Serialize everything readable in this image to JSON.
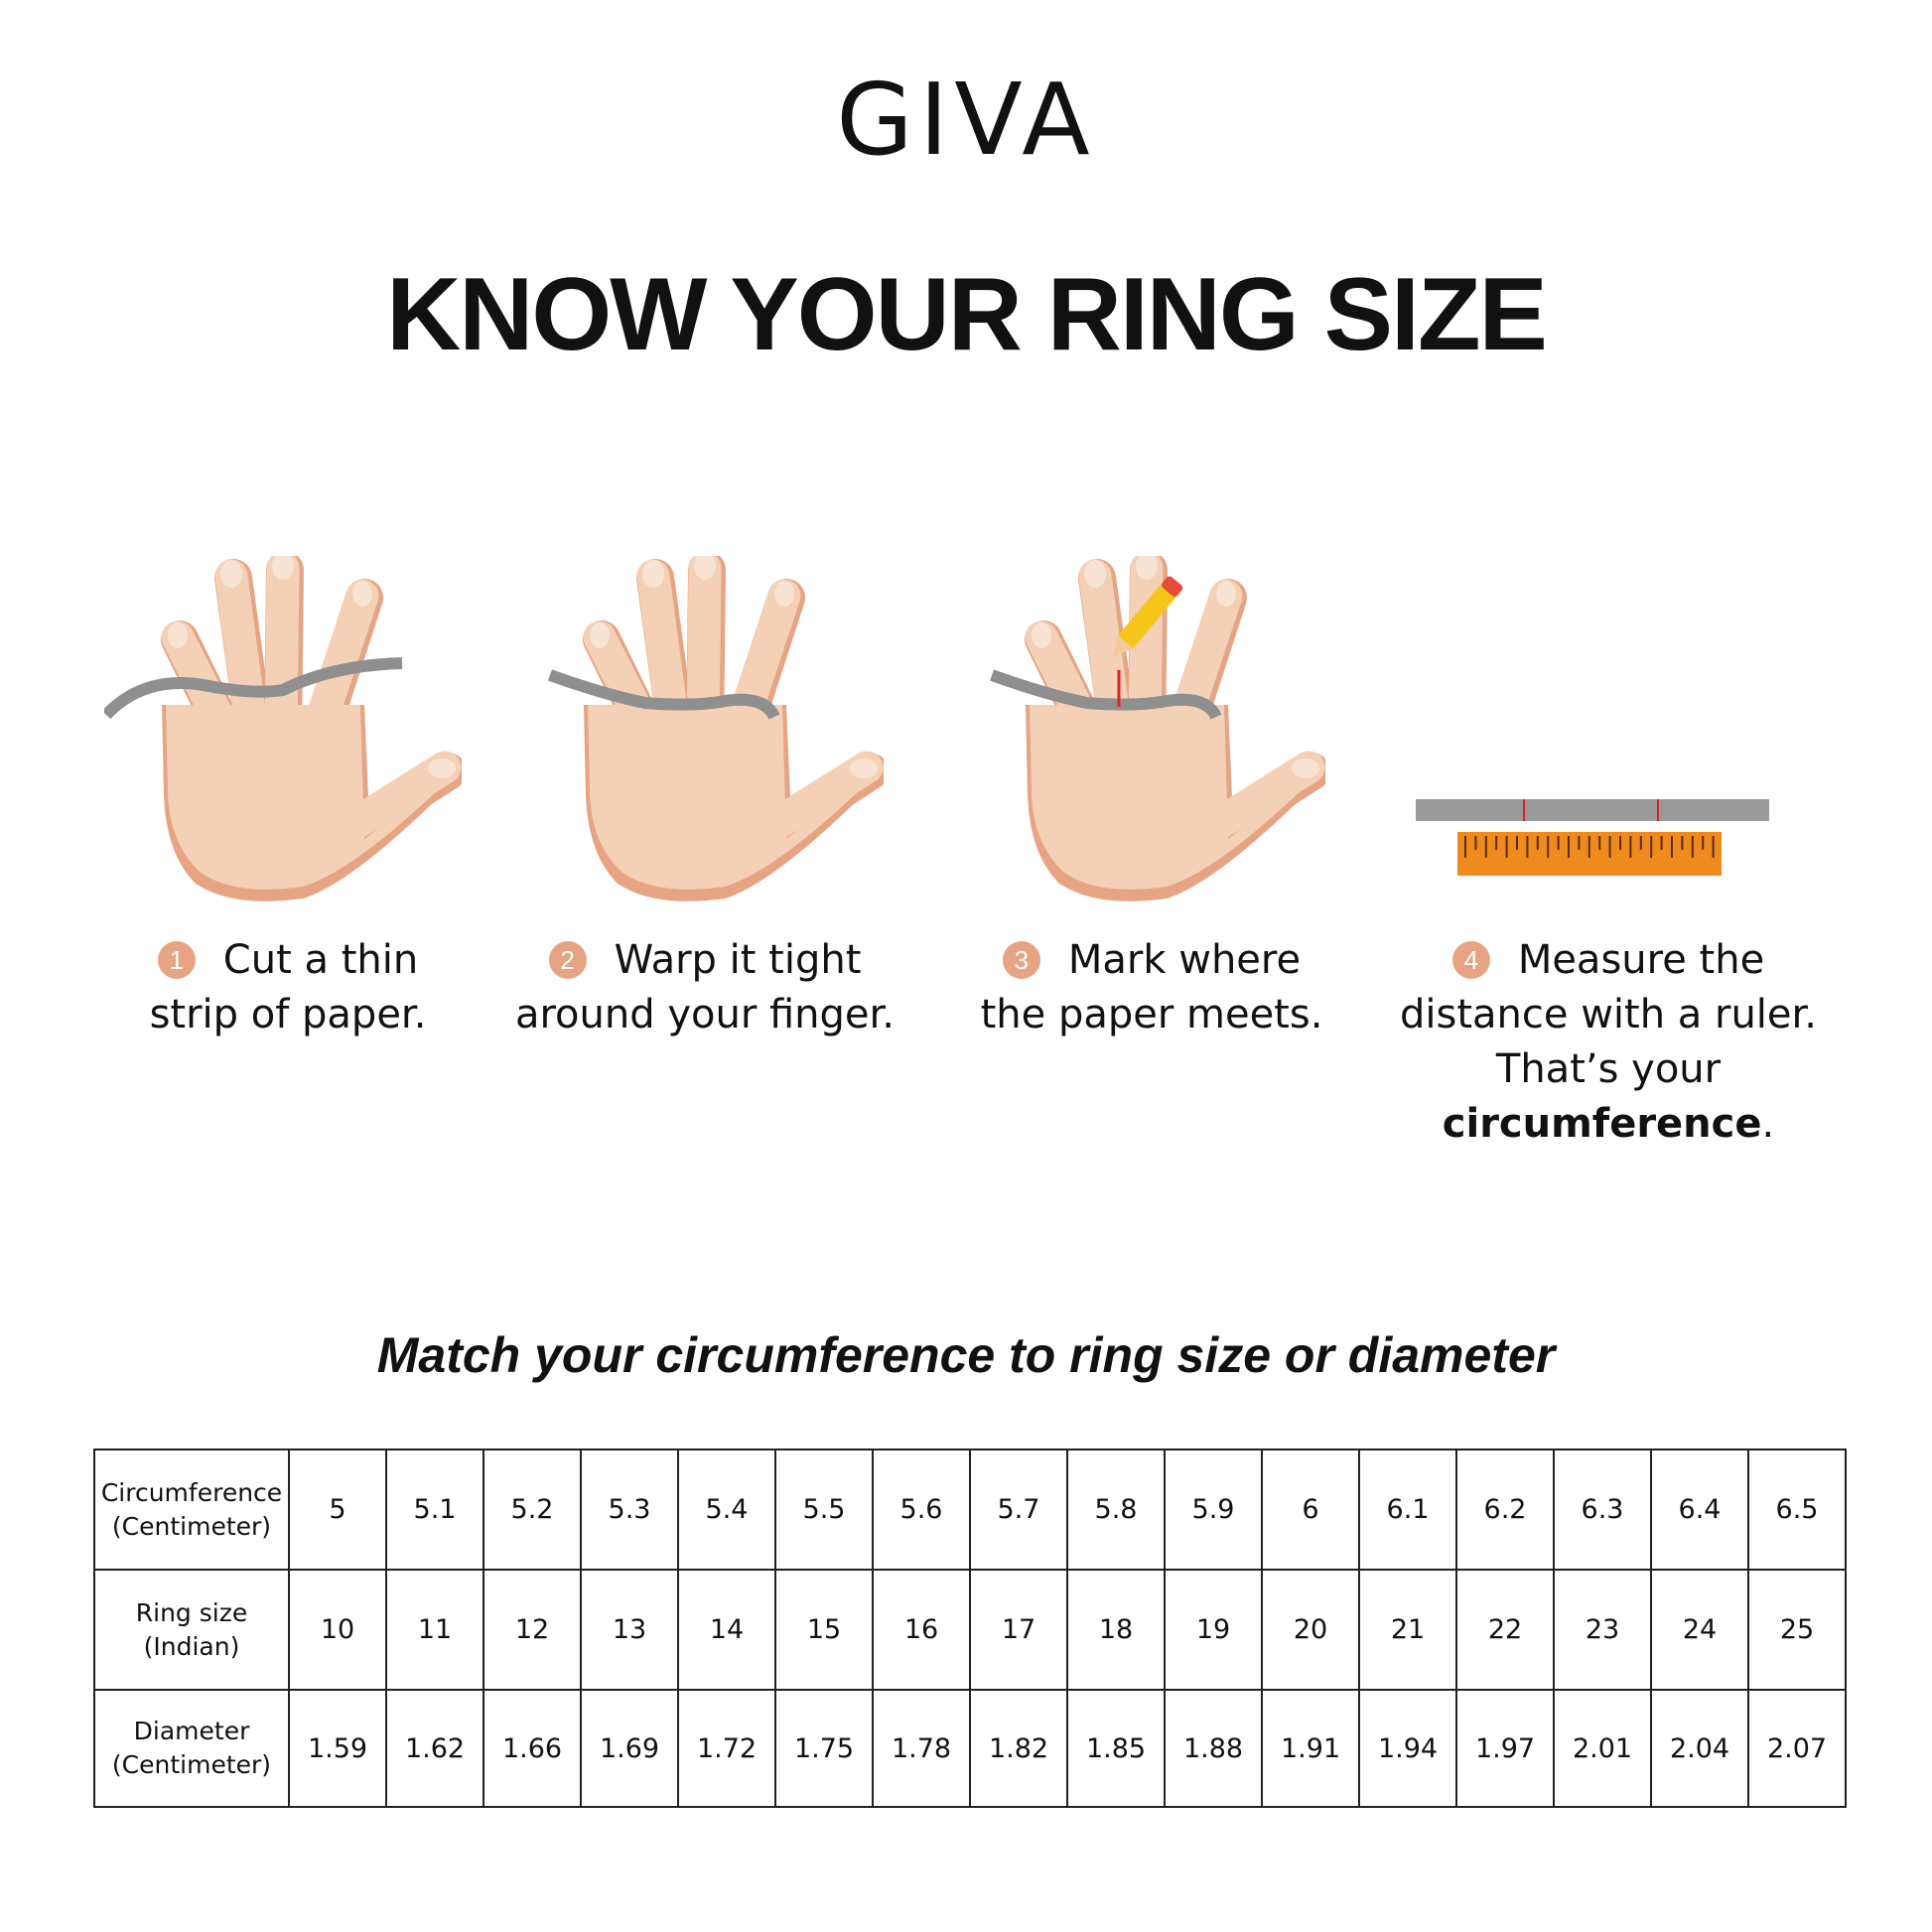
{
  "brand": {
    "logo": "GIVA"
  },
  "title": "KNOW YOUR RING SIZE",
  "steps": [
    {
      "number": "1",
      "line1": "Cut a thin",
      "line2": "strip of paper."
    },
    {
      "number": "2",
      "line1": "Warp it tight",
      "line2": "around your finger."
    },
    {
      "number": "3",
      "line1": "Mark where",
      "line2": "the paper meets."
    },
    {
      "number": "4",
      "line1": "Measure the",
      "line2": "distance with a ruler.",
      "line3_prefix": "That’s your ",
      "line3_bold": "circumference",
      "line3_suffix": "."
    }
  ],
  "subtitle": "Match your circumference to ring size or diameter",
  "colors": {
    "skin": "#f3d0b6",
    "skin_shadow": "#e6a483",
    "strip": "#8f8f8f",
    "ruler": "#ee8a1e",
    "step_badge": "#e6a483"
  },
  "size_table": {
    "rows": [
      {
        "header": [
          "Circumference",
          "(Centimeter)"
        ],
        "values": [
          "5",
          "5.1",
          "5.2",
          "5.3",
          "5.4",
          "5.5",
          "5.6",
          "5.7",
          "5.8",
          "5.9",
          "6",
          "6.1",
          "6.2",
          "6.3",
          "6.4",
          "6.5"
        ]
      },
      {
        "header": [
          "Ring size",
          "(Indian)"
        ],
        "values": [
          "10",
          "11",
          "12",
          "13",
          "14",
          "15",
          "16",
          "17",
          "18",
          "19",
          "20",
          "21",
          "22",
          "23",
          "24",
          "25"
        ]
      },
      {
        "header": [
          "Diameter",
          "(Centimeter)"
        ],
        "values": [
          "1.59",
          "1.62",
          "1.66",
          "1.69",
          "1.72",
          "1.75",
          "1.78",
          "1.82",
          "1.85",
          "1.88",
          "1.91",
          "1.94",
          "1.97",
          "2.01",
          "2.04",
          "2.07"
        ]
      }
    ]
  }
}
